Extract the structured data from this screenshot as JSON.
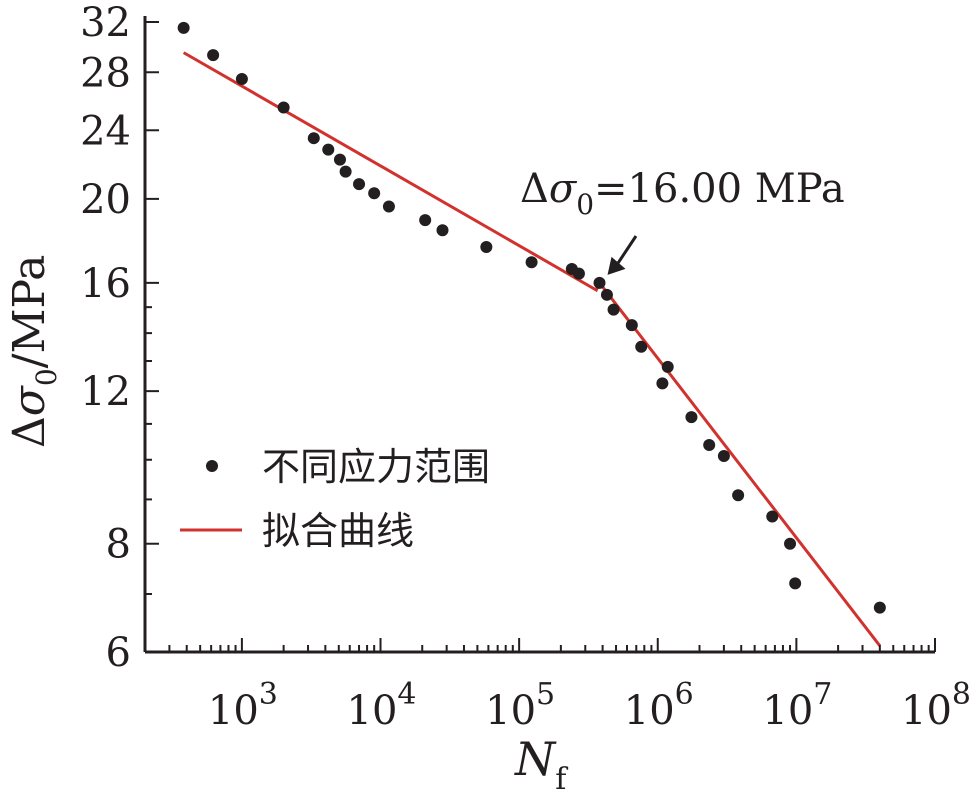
{
  "chart_data": {
    "type": "scatter",
    "xscale": "log",
    "yscale": "log",
    "xlim": [
      200,
      100000000
    ],
    "ylim": [
      6,
      32
    ],
    "x_ticks": [
      1000,
      10000,
      100000,
      1000000,
      10000000,
      100000000
    ],
    "x_tick_labels": [
      {
        "base": "10",
        "exp": "3"
      },
      {
        "base": "10",
        "exp": "4"
      },
      {
        "base": "10",
        "exp": "5"
      },
      {
        "base": "10",
        "exp": "6"
      },
      {
        "base": "10",
        "exp": "7"
      },
      {
        "base": "10",
        "exp": "8"
      }
    ],
    "y_ticks": [
      6,
      8,
      12,
      16,
      20,
      24,
      28,
      32
    ],
    "y_tick_labels": [
      "6",
      "8",
      "12",
      "16",
      "20",
      "24",
      "28",
      "32"
    ],
    "xlabel": {
      "main": "N",
      "sub": "f"
    },
    "ylabel": {
      "delta": "Δ",
      "sigma": "σ",
      "sub": "0",
      "rest": "/MPa"
    },
    "grid": false,
    "legend_position": "left",
    "colors": {
      "points": "#231f20",
      "fit": "#d2322d",
      "axes": "#231f20"
    },
    "series": [
      {
        "name": "不同应力范围",
        "kind": "points",
        "points": [
          [
            380,
            31.5
          ],
          [
            620,
            29.3
          ],
          [
            1000,
            27.5
          ],
          [
            2000,
            25.5
          ],
          [
            3300,
            23.5
          ],
          [
            4200,
            22.8
          ],
          [
            5100,
            22.2
          ],
          [
            5600,
            21.5
          ],
          [
            7000,
            20.8
          ],
          [
            9000,
            20.3
          ],
          [
            11500,
            19.6
          ],
          [
            21000,
            18.9
          ],
          [
            28000,
            18.4
          ],
          [
            58000,
            17.6
          ],
          [
            123000,
            16.9
          ],
          [
            240000,
            16.6
          ],
          [
            270000,
            16.4
          ],
          [
            380000,
            16.0
          ],
          [
            430000,
            15.5
          ],
          [
            480000,
            14.9
          ],
          [
            650000,
            14.3
          ],
          [
            760000,
            13.5
          ],
          [
            1080000,
            12.25
          ],
          [
            1180000,
            12.8
          ],
          [
            1750000,
            11.2
          ],
          [
            2350000,
            10.4
          ],
          [
            3000000,
            10.1
          ],
          [
            3800000,
            9.1
          ],
          [
            6700000,
            8.6
          ],
          [
            9000000,
            8.0
          ],
          [
            9800000,
            7.2
          ],
          [
            40000000,
            6.75
          ]
        ]
      },
      {
        "name": "拟合曲线",
        "kind": "line",
        "points": [
          [
            380,
            29.5
          ],
          [
            360000,
            15.7
          ],
          [
            380000,
            16.0
          ],
          [
            40000000,
            6.1
          ]
        ]
      }
    ],
    "annotation": {
      "prefix": "Δ",
      "sigma": "σ",
      "sub": "0",
      "text": "=16.00 MPa",
      "point": [
        380000,
        16.0
      ]
    }
  }
}
